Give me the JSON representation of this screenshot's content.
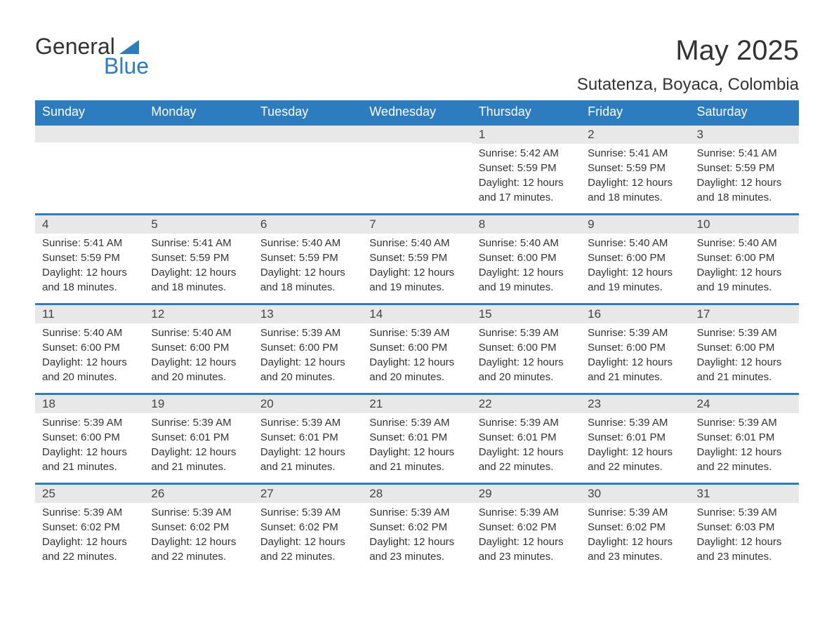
{
  "logo": {
    "word1": "General",
    "word2": "Blue",
    "triangle_color": "#2d7cc0"
  },
  "title": "May 2025",
  "location": "Sutatenza, Boyaca, Colombia",
  "colors": {
    "header_bg": "#2d7cc0",
    "header_text": "#ffffff",
    "daybar_bg": "#e8e8e8",
    "text": "#333333"
  },
  "weekdays": [
    "Sunday",
    "Monday",
    "Tuesday",
    "Wednesday",
    "Thursday",
    "Friday",
    "Saturday"
  ],
  "weeks": [
    [
      {
        "day": "",
        "sunrise": "",
        "sunset": "",
        "daylight": ""
      },
      {
        "day": "",
        "sunrise": "",
        "sunset": "",
        "daylight": ""
      },
      {
        "day": "",
        "sunrise": "",
        "sunset": "",
        "daylight": ""
      },
      {
        "day": "",
        "sunrise": "",
        "sunset": "",
        "daylight": ""
      },
      {
        "day": "1",
        "sunrise": "Sunrise: 5:42 AM",
        "sunset": "Sunset: 5:59 PM",
        "daylight": "Daylight: 12 hours and 17 minutes."
      },
      {
        "day": "2",
        "sunrise": "Sunrise: 5:41 AM",
        "sunset": "Sunset: 5:59 PM",
        "daylight": "Daylight: 12 hours and 18 minutes."
      },
      {
        "day": "3",
        "sunrise": "Sunrise: 5:41 AM",
        "sunset": "Sunset: 5:59 PM",
        "daylight": "Daylight: 12 hours and 18 minutes."
      }
    ],
    [
      {
        "day": "4",
        "sunrise": "Sunrise: 5:41 AM",
        "sunset": "Sunset: 5:59 PM",
        "daylight": "Daylight: 12 hours and 18 minutes."
      },
      {
        "day": "5",
        "sunrise": "Sunrise: 5:41 AM",
        "sunset": "Sunset: 5:59 PM",
        "daylight": "Daylight: 12 hours and 18 minutes."
      },
      {
        "day": "6",
        "sunrise": "Sunrise: 5:40 AM",
        "sunset": "Sunset: 5:59 PM",
        "daylight": "Daylight: 12 hours and 18 minutes."
      },
      {
        "day": "7",
        "sunrise": "Sunrise: 5:40 AM",
        "sunset": "Sunset: 5:59 PM",
        "daylight": "Daylight: 12 hours and 19 minutes."
      },
      {
        "day": "8",
        "sunrise": "Sunrise: 5:40 AM",
        "sunset": "Sunset: 6:00 PM",
        "daylight": "Daylight: 12 hours and 19 minutes."
      },
      {
        "day": "9",
        "sunrise": "Sunrise: 5:40 AM",
        "sunset": "Sunset: 6:00 PM",
        "daylight": "Daylight: 12 hours and 19 minutes."
      },
      {
        "day": "10",
        "sunrise": "Sunrise: 5:40 AM",
        "sunset": "Sunset: 6:00 PM",
        "daylight": "Daylight: 12 hours and 19 minutes."
      }
    ],
    [
      {
        "day": "11",
        "sunrise": "Sunrise: 5:40 AM",
        "sunset": "Sunset: 6:00 PM",
        "daylight": "Daylight: 12 hours and 20 minutes."
      },
      {
        "day": "12",
        "sunrise": "Sunrise: 5:40 AM",
        "sunset": "Sunset: 6:00 PM",
        "daylight": "Daylight: 12 hours and 20 minutes."
      },
      {
        "day": "13",
        "sunrise": "Sunrise: 5:39 AM",
        "sunset": "Sunset: 6:00 PM",
        "daylight": "Daylight: 12 hours and 20 minutes."
      },
      {
        "day": "14",
        "sunrise": "Sunrise: 5:39 AM",
        "sunset": "Sunset: 6:00 PM",
        "daylight": "Daylight: 12 hours and 20 minutes."
      },
      {
        "day": "15",
        "sunrise": "Sunrise: 5:39 AM",
        "sunset": "Sunset: 6:00 PM",
        "daylight": "Daylight: 12 hours and 20 minutes."
      },
      {
        "day": "16",
        "sunrise": "Sunrise: 5:39 AM",
        "sunset": "Sunset: 6:00 PM",
        "daylight": "Daylight: 12 hours and 21 minutes."
      },
      {
        "day": "17",
        "sunrise": "Sunrise: 5:39 AM",
        "sunset": "Sunset: 6:00 PM",
        "daylight": "Daylight: 12 hours and 21 minutes."
      }
    ],
    [
      {
        "day": "18",
        "sunrise": "Sunrise: 5:39 AM",
        "sunset": "Sunset: 6:00 PM",
        "daylight": "Daylight: 12 hours and 21 minutes."
      },
      {
        "day": "19",
        "sunrise": "Sunrise: 5:39 AM",
        "sunset": "Sunset: 6:01 PM",
        "daylight": "Daylight: 12 hours and 21 minutes."
      },
      {
        "day": "20",
        "sunrise": "Sunrise: 5:39 AM",
        "sunset": "Sunset: 6:01 PM",
        "daylight": "Daylight: 12 hours and 21 minutes."
      },
      {
        "day": "21",
        "sunrise": "Sunrise: 5:39 AM",
        "sunset": "Sunset: 6:01 PM",
        "daylight": "Daylight: 12 hours and 21 minutes."
      },
      {
        "day": "22",
        "sunrise": "Sunrise: 5:39 AM",
        "sunset": "Sunset: 6:01 PM",
        "daylight": "Daylight: 12 hours and 22 minutes."
      },
      {
        "day": "23",
        "sunrise": "Sunrise: 5:39 AM",
        "sunset": "Sunset: 6:01 PM",
        "daylight": "Daylight: 12 hours and 22 minutes."
      },
      {
        "day": "24",
        "sunrise": "Sunrise: 5:39 AM",
        "sunset": "Sunset: 6:01 PM",
        "daylight": "Daylight: 12 hours and 22 minutes."
      }
    ],
    [
      {
        "day": "25",
        "sunrise": "Sunrise: 5:39 AM",
        "sunset": "Sunset: 6:02 PM",
        "daylight": "Daylight: 12 hours and 22 minutes."
      },
      {
        "day": "26",
        "sunrise": "Sunrise: 5:39 AM",
        "sunset": "Sunset: 6:02 PM",
        "daylight": "Daylight: 12 hours and 22 minutes."
      },
      {
        "day": "27",
        "sunrise": "Sunrise: 5:39 AM",
        "sunset": "Sunset: 6:02 PM",
        "daylight": "Daylight: 12 hours and 22 minutes."
      },
      {
        "day": "28",
        "sunrise": "Sunrise: 5:39 AM",
        "sunset": "Sunset: 6:02 PM",
        "daylight": "Daylight: 12 hours and 23 minutes."
      },
      {
        "day": "29",
        "sunrise": "Sunrise: 5:39 AM",
        "sunset": "Sunset: 6:02 PM",
        "daylight": "Daylight: 12 hours and 23 minutes."
      },
      {
        "day": "30",
        "sunrise": "Sunrise: 5:39 AM",
        "sunset": "Sunset: 6:02 PM",
        "daylight": "Daylight: 12 hours and 23 minutes."
      },
      {
        "day": "31",
        "sunrise": "Sunrise: 5:39 AM",
        "sunset": "Sunset: 6:03 PM",
        "daylight": "Daylight: 12 hours and 23 minutes."
      }
    ]
  ]
}
